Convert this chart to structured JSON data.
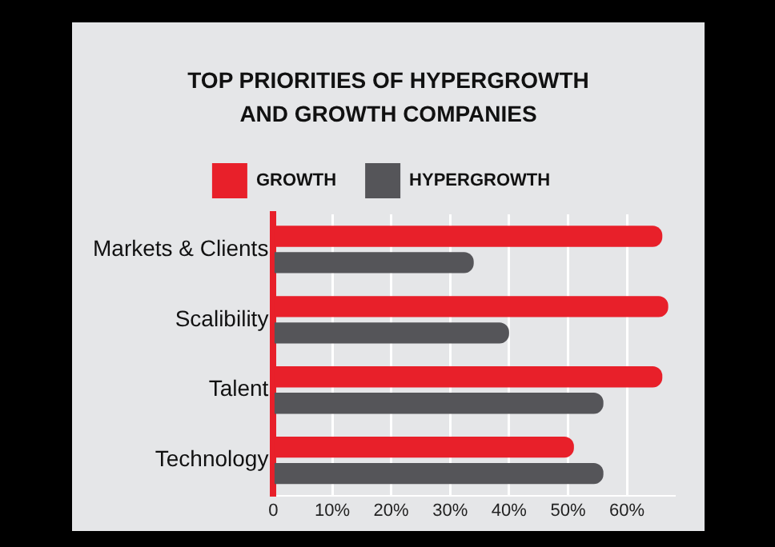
{
  "chart_data": {
    "type": "bar",
    "orientation": "horizontal",
    "title": "TOP PRIORITIES OF HYPERGROWTH AND GROWTH COMPANIES",
    "categories": [
      "Markets & Clients",
      "Scalibility",
      "Talent",
      "Technology"
    ],
    "series": [
      {
        "name": "GROWTH",
        "color": "#e8202a",
        "values": [
          66,
          67,
          66,
          51
        ]
      },
      {
        "name": "HYPERGROWTH",
        "color": "#555559",
        "values": [
          34,
          40,
          56,
          56
        ]
      }
    ],
    "xlim": [
      0,
      68
    ],
    "xticks": [
      0,
      {
        "value": 10,
        "label": "10%"
      },
      {
        "value": 20,
        "label": "20%"
      },
      {
        "value": 30,
        "label": "30%"
      },
      {
        "value": 40,
        "label": "40%"
      },
      {
        "value": 50,
        "label": "50%"
      },
      {
        "value": 60,
        "label": "60%"
      }
    ],
    "grid": "x",
    "legend": "top"
  }
}
